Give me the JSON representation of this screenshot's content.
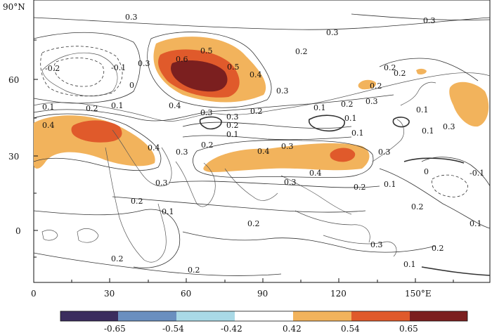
{
  "axes": {
    "y_ticks": [
      "90°N",
      "60",
      "30",
      "0"
    ],
    "x_ticks": [
      "0",
      "30",
      "60",
      "90",
      "120",
      "150°E"
    ]
  },
  "contour_labels": [
    "0.3",
    "0.3",
    "0.3",
    "0.2",
    "-0.2",
    "-0.1",
    "0",
    "0.3",
    "0.6",
    "0.5",
    "0.5",
    "0.4",
    "0.3",
    "0.4",
    "0.1",
    "0.2",
    "0.1",
    "0.4",
    "0.4",
    "0.3",
    "0.2",
    "0.1",
    "0.2",
    "0.3",
    "0.3",
    "0.2",
    "0.1",
    "0.2",
    "0.1",
    "0.3",
    "0.1",
    "0.4",
    "0.3",
    "0.3",
    "0.4",
    "0.3",
    "0.2",
    "0.3",
    "0.1",
    "0.2",
    "0.2",
    "0.1",
    "0.1",
    "0",
    "-0.1",
    "0.2",
    "0.1",
    "0.2",
    "0.2",
    "0.1",
    "0.3",
    "0.2",
    "0.2",
    "0.1",
    "0.2",
    "0.3",
    "0.2"
  ],
  "colorbar": {
    "labels": [
      "-0.65",
      "-0.54",
      "-0.42",
      "0.42",
      "0.54",
      "0.65"
    ],
    "colors": [
      "#3b2d5e",
      "#6a8fbf",
      "#a9d9e6",
      "#ffffff",
      "#f2b35c",
      "#e05a2b",
      "#7b1f1f"
    ]
  }
}
